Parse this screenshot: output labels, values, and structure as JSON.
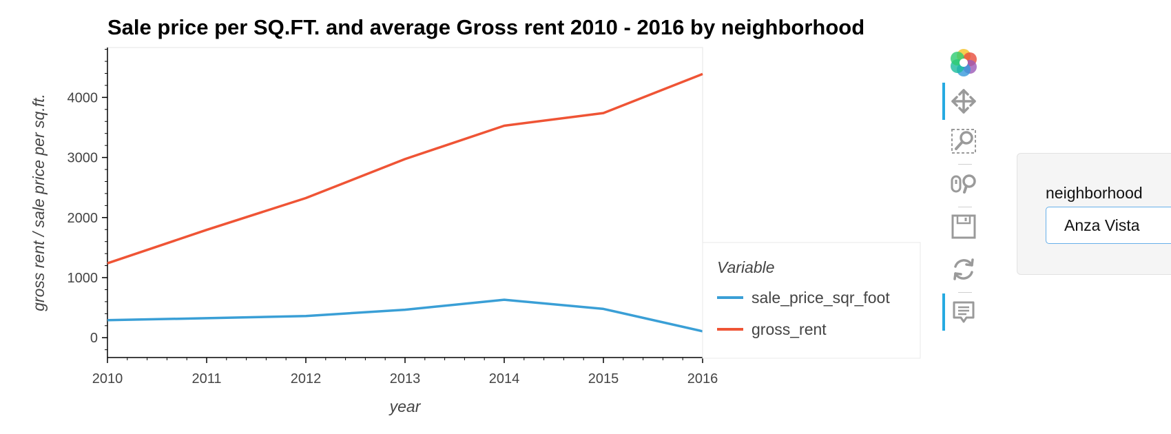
{
  "chart_data": {
    "type": "line",
    "title": "Sale price per SQ.FT. and average Gross rent 2010 - 2016 by neighborhood",
    "xlabel": "year",
    "ylabel": "gross rent / sale price per sq.ft.",
    "x": [
      2010,
      2011,
      2012,
      2013,
      2014,
      2015,
      2016
    ],
    "xlim": [
      2010,
      2016
    ],
    "ylim": [
      -330,
      4830
    ],
    "xticks": [
      "2010",
      "2011",
      "2012",
      "2013",
      "2014",
      "2015",
      "2016"
    ],
    "yticks": [
      "0",
      "1000",
      "2000",
      "3000",
      "4000"
    ],
    "legend_title": "Variable",
    "legend_position": "right",
    "grid": false,
    "series": [
      {
        "name": "sale_price_sqr_foot",
        "color": "#3a9fd6",
        "values": [
          291,
          325,
          362,
          466,
          632,
          479,
          107
        ]
      },
      {
        "name": "gross_rent",
        "color": "#ef5435",
        "values": [
          1239,
          1795,
          2325,
          2973,
          3528,
          3739,
          4390
        ]
      }
    ]
  },
  "toolbar": {
    "tools": [
      "bokeh-logo-icon",
      "pan-icon",
      "box-zoom-icon",
      "wheel-zoom-icon",
      "save-icon",
      "reset-icon",
      "hover-icon"
    ]
  },
  "widget": {
    "label": "neighborhood",
    "selected": "Anza Vista"
  }
}
